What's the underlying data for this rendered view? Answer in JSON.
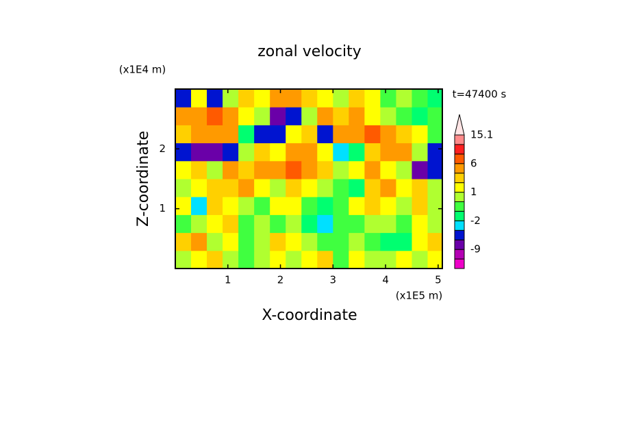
{
  "chart_data": {
    "type": "contour",
    "title": "zonal velocity",
    "x_label": "X-coordinate",
    "y_label": "Z-coordinate",
    "x_unit_label": "(x1E5 m)",
    "y_unit_label": "(x1E4 m)",
    "annotation": "t=47400 s",
    "x": [
      0.15,
      0.45,
      0.75,
      1.05,
      1.35,
      1.65,
      1.95,
      2.25,
      2.55,
      2.85,
      3.15,
      3.45,
      3.75,
      4.05,
      4.35,
      4.65,
      4.95
    ],
    "z": [
      0.15,
      0.45,
      0.75,
      1.05,
      1.35,
      1.65,
      1.95,
      2.25,
      2.55,
      2.85
    ],
    "values": [
      [
        1,
        2,
        3,
        1,
        0,
        1,
        2,
        1,
        2,
        3,
        0,
        2,
        1,
        1,
        2,
        1,
        2
      ],
      [
        3,
        5,
        1,
        2,
        0,
        1,
        3,
        2,
        1,
        0,
        0,
        1,
        0,
        -1,
        -1,
        2,
        3
      ],
      [
        0,
        1,
        2,
        3,
        0,
        1,
        0,
        1,
        -1,
        -2,
        0,
        0,
        1,
        1,
        0,
        2,
        1
      ],
      [
        2,
        -2,
        3,
        2,
        1,
        0,
        2,
        2,
        0,
        -1,
        0,
        2,
        3,
        2,
        1,
        3,
        1
      ],
      [
        1,
        2,
        3,
        3,
        4,
        2,
        1,
        3,
        2,
        1,
        0,
        -1,
        3,
        4,
        2,
        3,
        1
      ],
      [
        2,
        3,
        1,
        4,
        3,
        5,
        6,
        7,
        5,
        3,
        1,
        2,
        4,
        2,
        1,
        -6,
        -3
      ],
      [
        -5,
        -6,
        -7,
        -3,
        1,
        3,
        2,
        5,
        4,
        2,
        -2,
        -1,
        3,
        6,
        4,
        1,
        -4
      ],
      [
        3,
        5,
        6,
        4,
        -1,
        -5,
        -4,
        2,
        3,
        -3,
        5,
        6,
        7,
        4,
        3,
        2,
        0
      ],
      [
        4,
        5,
        7,
        6,
        2,
        1,
        -6,
        -3,
        1,
        4,
        3,
        5,
        2,
        1,
        0,
        -1,
        0
      ],
      [
        -3,
        2,
        -4,
        1,
        3,
        2,
        4,
        6,
        3,
        2,
        1,
        3,
        2,
        0,
        1,
        0,
        -1
      ]
    ],
    "xlim": [
      0,
      5.08
    ],
    "ylim": [
      0,
      3.0
    ],
    "xticks": [
      1,
      2,
      3,
      4,
      5
    ],
    "yticks": [
      1,
      2
    ],
    "levels": [
      -15,
      -12,
      -9,
      -6,
      -3,
      -2,
      -1,
      0,
      1,
      2,
      3,
      6,
      9,
      12,
      15.1
    ],
    "colors": [
      "#ee00c8",
      "#b400b4",
      "#6a00a8",
      "#0014d0",
      "#00e0ff",
      "#00ff70",
      "#40ff40",
      "#b0ff30",
      "#ffff00",
      "#ffd000",
      "#ff9a00",
      "#ff5a00",
      "#ff2020",
      "#ff8a8a"
    ],
    "extend_color": "#ffe4e4",
    "colorbar_ticks": [
      15.1,
      6,
      1,
      -2,
      -9
    ]
  }
}
